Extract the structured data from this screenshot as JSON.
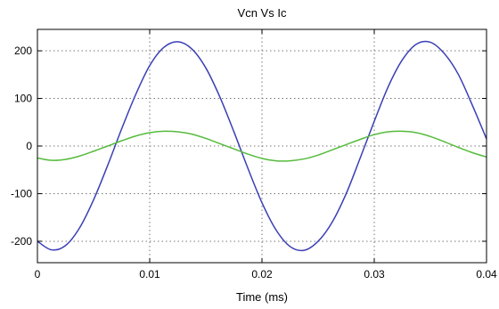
{
  "chart_data": {
    "type": "line",
    "title": "Vcn Vs Ic",
    "xlabel": "Time (ms)",
    "ylabel": "",
    "xlim": [
      0,
      0.04
    ],
    "ylim": [
      -245,
      245
    ],
    "x_ticks": [
      0,
      0.01,
      0.02,
      0.03,
      0.04
    ],
    "x_tick_labels": [
      "0",
      "0.01",
      "0.02",
      "0.03",
      "0.04"
    ],
    "y_ticks": [
      -200,
      -100,
      0,
      100,
      200
    ],
    "y_tick_labels": [
      "-200",
      "-100",
      "0",
      "100",
      "200"
    ],
    "grid": true,
    "legend": "none",
    "series": [
      {
        "color": "#3b3fb5",
        "x": [
          0,
          0.00125,
          0.0025,
          0.00375,
          0.005,
          0.00625,
          0.0075,
          0.00875,
          0.01,
          0.01125,
          0.0125,
          0.01375,
          0.015,
          0.01625,
          0.0175,
          0.01875,
          0.02,
          0.02125,
          0.0225,
          0.02375,
          0.025,
          0.02625,
          0.0275,
          0.02875,
          0.03,
          0.03125,
          0.0325,
          0.03375,
          0.035,
          0.03625,
          0.0375,
          0.03875,
          0.04
        ],
        "values": [
          -200,
          -218,
          -209,
          -172,
          -113,
          -41,
          36,
          108,
          169,
          207,
          219,
          204,
          164,
          103,
          30,
          -47,
          -119,
          -176,
          -211,
          -219,
          -200,
          -160,
          -100,
          -25,
          52,
          125,
          181,
          214,
          218,
          194,
          150,
          85,
          15
        ]
      },
      {
        "color": "#55bb3c",
        "x": [
          0,
          0.00125,
          0.0025,
          0.00375,
          0.005,
          0.00625,
          0.0075,
          0.00875,
          0.01,
          0.01125,
          0.0125,
          0.01375,
          0.015,
          0.01625,
          0.0175,
          0.01875,
          0.02,
          0.02125,
          0.0225,
          0.02375,
          0.025,
          0.02625,
          0.0275,
          0.02875,
          0.03,
          0.03125,
          0.0325,
          0.03375,
          0.035,
          0.03625,
          0.0375,
          0.03875,
          0.04
        ],
        "values": [
          -25,
          -30,
          -28,
          -21,
          -11,
          0,
          11,
          21,
          28,
          31,
          30,
          25,
          16,
          5,
          -6,
          -17,
          -26,
          -31,
          -31,
          -27,
          -19,
          -8,
          3,
          14,
          24,
          30,
          31,
          28,
          20,
          9,
          -3,
          -14,
          -23
        ]
      }
    ]
  }
}
